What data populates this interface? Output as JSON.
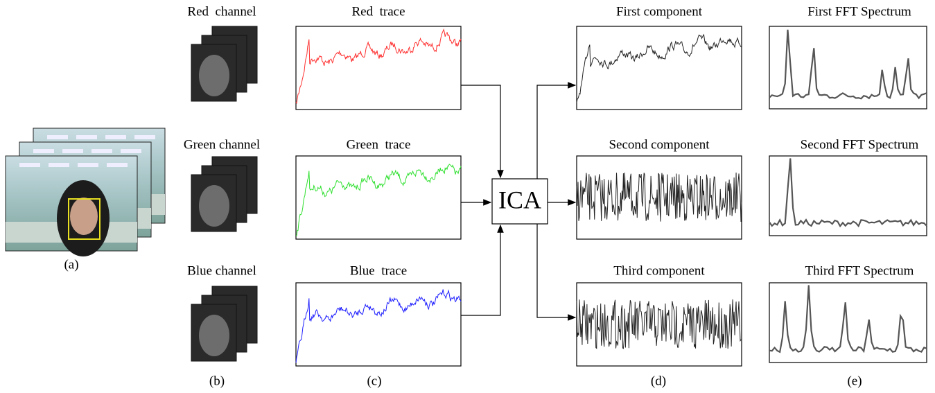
{
  "video": {
    "label": "(a)"
  },
  "channels": {
    "label": "(b)",
    "items": [
      "Red  channel",
      "Green channel",
      "Blue channel"
    ]
  },
  "traces": {
    "label": "(c)",
    "items": [
      "Red  trace",
      "Green  trace",
      "Blue  trace"
    ]
  },
  "ica": "ICA",
  "components": {
    "label": "(d)",
    "items": [
      "First component",
      "Second component",
      "Third component"
    ]
  },
  "spectra": {
    "label": "(e)",
    "items": [
      "First FFT Spectrum",
      "Second FFT Spectrum",
      "Third FFT Spectrum"
    ]
  }
}
